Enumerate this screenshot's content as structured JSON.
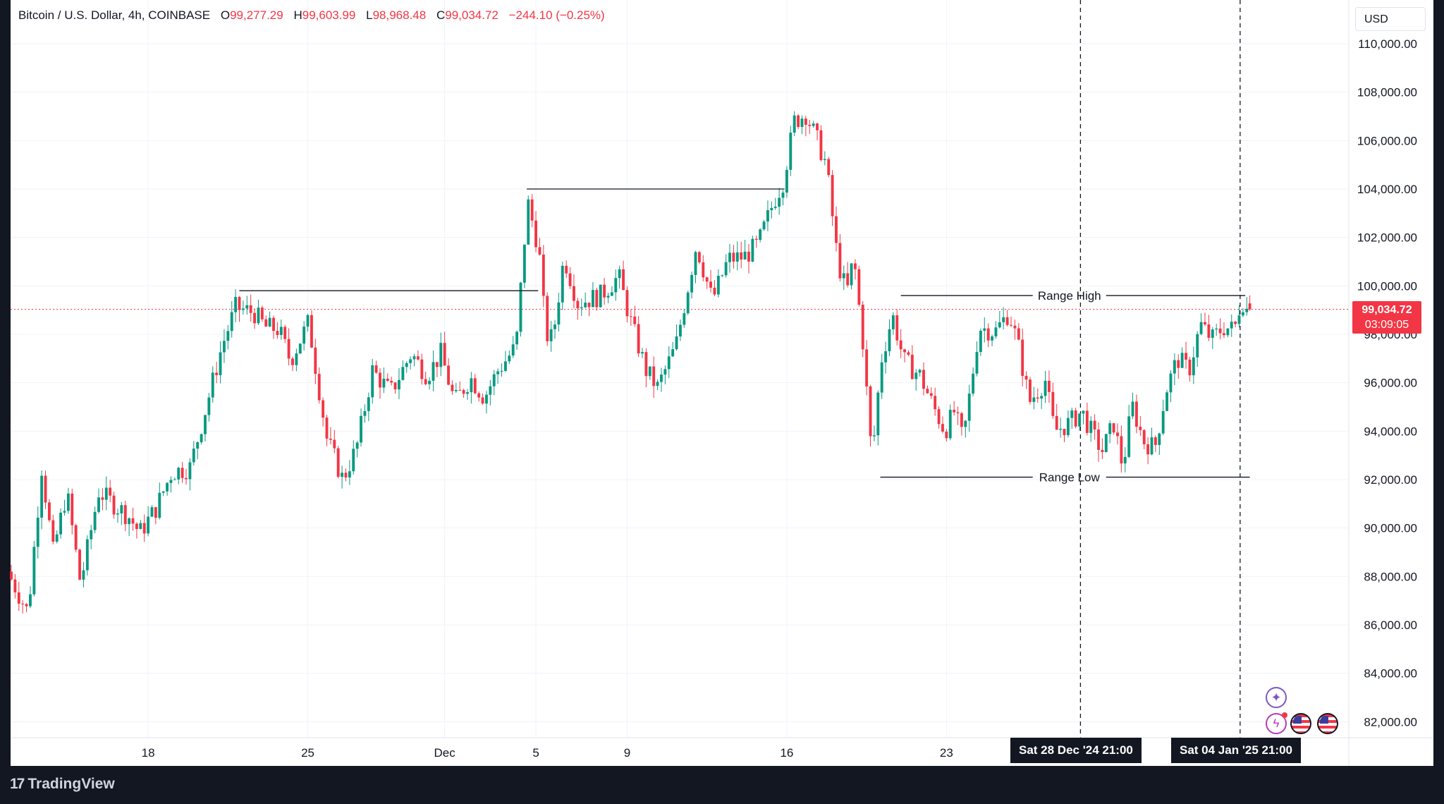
{
  "legend": {
    "symbol": "Bitcoin / U.S. Dollar, 4h, COINBASE",
    "o_label": "O",
    "o_value": "99,277.29",
    "h_label": "H",
    "h_value": "99,603.99",
    "l_label": "L",
    "l_value": "98,968.48",
    "c_label": "C",
    "c_value": "99,034.72",
    "change": "−244.10 (−0.25%)"
  },
  "currency": "USD",
  "last_price": {
    "value": "99,034.72",
    "countdown": "03:09:05"
  },
  "time_tags": [
    "Sat 28 Dec '24   21:00",
    "Sat 04 Jan '25   21:00"
  ],
  "partial_tick": "25",
  "branding": {
    "name": "TradingView"
  },
  "colors": {
    "up": "#089981",
    "down": "#f23645",
    "grid": "#f0f3fa",
    "line": "#131722"
  },
  "icons": [
    "sparkle-icon",
    "lightning-icon",
    "us-flag-icon",
    "us-flag-icon"
  ],
  "chart_data": {
    "type": "candlestick",
    "title": "",
    "ylim": [
      80500,
      110800
    ],
    "y_ticks": [
      82000,
      84000,
      86000,
      88000,
      90000,
      92000,
      94000,
      96000,
      98000,
      100000,
      102000,
      104000,
      106000,
      108000,
      110000
    ],
    "y_tick_labels": [
      "82,000.00",
      "84,000.00",
      "86,000.00",
      "88,000.00",
      "90,000.00",
      "92,000.00",
      "94,000.00",
      "96,000.00",
      "98,000.00",
      "100,000.00",
      "102,000.00",
      "104,000.00",
      "106,000.00",
      "108,000.00",
      "110,000.00"
    ],
    "x_ticks": [
      {
        "label": "18",
        "day": 18
      },
      {
        "label": "25",
        "day": 25
      },
      {
        "label": "Dec",
        "day": 31
      },
      {
        "label": "5",
        "day": 35
      },
      {
        "label": "9",
        "day": 39
      },
      {
        "label": "16",
        "day": 46
      },
      {
        "label": "23",
        "day": 53
      }
    ],
    "x_day_range": [
      12.0,
      66.5
    ],
    "vertical_markers_day": [
      58.875,
      65.875
    ],
    "last_price": 99034.72,
    "horizontal_lines": [
      {
        "from_day": 22.0,
        "to_day": 35.1,
        "price": 99800
      },
      {
        "from_day": 34.6,
        "to_day": 45.9,
        "price": 104000
      }
    ],
    "range": {
      "high": {
        "label": "Range High",
        "price": 99600,
        "from_day": 51.0,
        "to_day": 66.1
      },
      "low": {
        "label": "Range Low",
        "price": 92100,
        "from_day": 50.1,
        "to_day": 66.3
      }
    },
    "anchors": [
      {
        "day": 12.0,
        "price": 88200
      },
      {
        "day": 12.9,
        "price": 86500
      },
      {
        "day": 13.5,
        "price": 92500
      },
      {
        "day": 14.0,
        "price": 89000
      },
      {
        "day": 14.6,
        "price": 91500
      },
      {
        "day": 15.2,
        "price": 87700
      },
      {
        "day": 16.0,
        "price": 91500
      },
      {
        "day": 17.3,
        "price": 90500
      },
      {
        "day": 17.8,
        "price": 89800
      },
      {
        "day": 18.5,
        "price": 90800
      },
      {
        "day": 19.2,
        "price": 92300
      },
      {
        "day": 20.0,
        "price": 92500
      },
      {
        "day": 20.6,
        "price": 94600
      },
      {
        "day": 21.4,
        "price": 97500
      },
      {
        "day": 22.0,
        "price": 99100
      },
      {
        "day": 22.8,
        "price": 98900
      },
      {
        "day": 23.3,
        "price": 98300
      },
      {
        "day": 23.9,
        "price": 98200
      },
      {
        "day": 24.4,
        "price": 96900
      },
      {
        "day": 25.2,
        "price": 98500
      },
      {
        "day": 26.0,
        "price": 93700
      },
      {
        "day": 26.7,
        "price": 92000
      },
      {
        "day": 27.3,
        "price": 93300
      },
      {
        "day": 28.0,
        "price": 96500
      },
      {
        "day": 28.8,
        "price": 95600
      },
      {
        "day": 29.7,
        "price": 97200
      },
      {
        "day": 30.4,
        "price": 96300
      },
      {
        "day": 31.0,
        "price": 97200
      },
      {
        "day": 31.6,
        "price": 95200
      },
      {
        "day": 32.3,
        "price": 96200
      },
      {
        "day": 32.9,
        "price": 95400
      },
      {
        "day": 33.5,
        "price": 96500
      },
      {
        "day": 34.3,
        "price": 97500
      },
      {
        "day": 34.8,
        "price": 103500
      },
      {
        "day": 35.3,
        "price": 101500
      },
      {
        "day": 35.6,
        "price": 98000
      },
      {
        "day": 35.9,
        "price": 97800
      },
      {
        "day": 36.4,
        "price": 101200
      },
      {
        "day": 37.0,
        "price": 99300
      },
      {
        "day": 38.0,
        "price": 99600
      },
      {
        "day": 38.8,
        "price": 100400
      },
      {
        "day": 39.3,
        "price": 98600
      },
      {
        "day": 40.0,
        "price": 96500
      },
      {
        "day": 40.5,
        "price": 95800
      },
      {
        "day": 41.3,
        "price": 97500
      },
      {
        "day": 41.8,
        "price": 99800
      },
      {
        "day": 42.2,
        "price": 101700
      },
      {
        "day": 42.9,
        "price": 99400
      },
      {
        "day": 43.6,
        "price": 101100
      },
      {
        "day": 44.3,
        "price": 101200
      },
      {
        "day": 44.9,
        "price": 101700
      },
      {
        "day": 45.6,
        "price": 103500
      },
      {
        "day": 46.0,
        "price": 104300
      },
      {
        "day": 46.5,
        "price": 106800
      },
      {
        "day": 47.0,
        "price": 107100
      },
      {
        "day": 47.5,
        "price": 106000
      },
      {
        "day": 47.9,
        "price": 105000
      },
      {
        "day": 48.4,
        "price": 101000
      },
      {
        "day": 48.8,
        "price": 99700
      },
      {
        "day": 49.1,
        "price": 101200
      },
      {
        "day": 49.5,
        "price": 97700
      },
      {
        "day": 49.9,
        "price": 92800
      },
      {
        "day": 50.3,
        "price": 96900
      },
      {
        "day": 50.8,
        "price": 98800
      },
      {
        "day": 51.3,
        "price": 96900
      },
      {
        "day": 52.0,
        "price": 96300
      },
      {
        "day": 52.6,
        "price": 95000
      },
      {
        "day": 53.1,
        "price": 94000
      },
      {
        "day": 53.5,
        "price": 94800
      },
      {
        "day": 53.9,
        "price": 93600
      },
      {
        "day": 54.6,
        "price": 98300
      },
      {
        "day": 55.3,
        "price": 98100
      },
      {
        "day": 55.9,
        "price": 98900
      },
      {
        "day": 56.3,
        "price": 97600
      },
      {
        "day": 56.8,
        "price": 95200
      },
      {
        "day": 57.5,
        "price": 96100
      },
      {
        "day": 57.9,
        "price": 94000
      },
      {
        "day": 58.5,
        "price": 94300
      },
      {
        "day": 59.1,
        "price": 94800
      },
      {
        "day": 59.6,
        "price": 93800
      },
      {
        "day": 60.0,
        "price": 93200
      },
      {
        "day": 60.5,
        "price": 94300
      },
      {
        "day": 60.9,
        "price": 92500
      },
      {
        "day": 61.3,
        "price": 95100
      },
      {
        "day": 61.8,
        "price": 93600
      },
      {
        "day": 62.3,
        "price": 93300
      },
      {
        "day": 62.8,
        "price": 95700
      },
      {
        "day": 63.3,
        "price": 97000
      },
      {
        "day": 63.8,
        "price": 96500
      },
      {
        "day": 64.3,
        "price": 98400
      },
      {
        "day": 64.8,
        "price": 97800
      },
      {
        "day": 65.3,
        "price": 98300
      },
      {
        "day": 65.8,
        "price": 98200
      },
      {
        "day": 66.1,
        "price": 99500
      },
      {
        "day": 66.3,
        "price": 99034.72
      }
    ]
  }
}
